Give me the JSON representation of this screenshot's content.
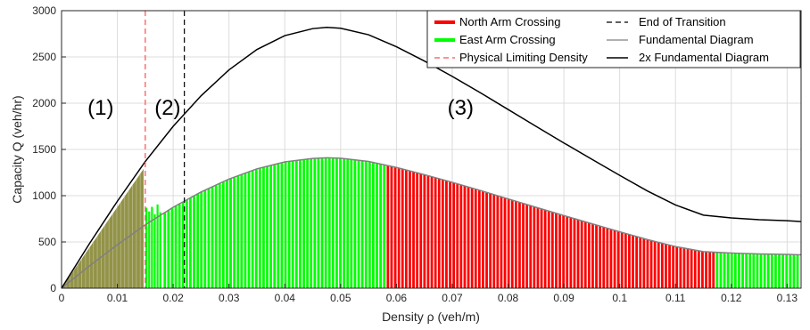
{
  "chart_data": {
    "type": "bar",
    "xlabel": "Density ρ (veh/m)",
    "ylabel": "Capacity Q (veh/hr)",
    "xlim": [
      0,
      0.1325
    ],
    "ylim": [
      0,
      3000
    ],
    "x_ticks": [
      "0",
      "0.01",
      "0.02",
      "0.03",
      "0.04",
      "0.05",
      "0.06",
      "0.07",
      "0.08",
      "0.09",
      "0.1",
      "0.11",
      "0.12",
      "0.13"
    ],
    "y_ticks": [
      "0",
      "500",
      "1000",
      "1500",
      "2000",
      "2500",
      "3000"
    ],
    "grid": true,
    "legend_position": "top-right",
    "legend": [
      "North Arm Crossing",
      "End of Transition",
      "East Arm Crossing",
      "Fundamental Diagram",
      "Physical Limiting Density",
      "2x Fundamental Diagram"
    ],
    "colors": {
      "north": "#ff0000",
      "east": "#00ff00",
      "overlap": "#8a8a3a",
      "fundamental": "#808080",
      "double": "#000000",
      "physical": "#ff4d4d",
      "transition": "#000000",
      "grid": "#dcdcdc"
    },
    "fundamental_diagram": {
      "x": [
        0,
        0.005,
        0.01,
        0.015,
        0.02,
        0.025,
        0.03,
        0.035,
        0.04,
        0.045,
        0.0475,
        0.05,
        0.055,
        0.06,
        0.065,
        0.07,
        0.075,
        0.08,
        0.085,
        0.09,
        0.095,
        0.1,
        0.105,
        0.11,
        0.115,
        0.12,
        0.125,
        0.13,
        0.1325
      ],
      "y": [
        0,
        241,
        470,
        685,
        875,
        1040,
        1180,
        1290,
        1365,
        1403,
        1410,
        1405,
        1370,
        1305,
        1228,
        1145,
        1057,
        966,
        875,
        785,
        697,
        610,
        525,
        450,
        395,
        380,
        370,
        365,
        360
      ]
    },
    "double_fundamental_diagram": {
      "x": [
        0,
        0.005,
        0.01,
        0.015,
        0.02,
        0.025,
        0.03,
        0.035,
        0.04,
        0.045,
        0.0475,
        0.05,
        0.055,
        0.06,
        0.065,
        0.07,
        0.075,
        0.08,
        0.085,
        0.09,
        0.095,
        0.1,
        0.105,
        0.11,
        0.115,
        0.12,
        0.125,
        0.13,
        0.1325
      ],
      "y": [
        0,
        482,
        940,
        1370,
        1750,
        2080,
        2360,
        2580,
        2730,
        2806,
        2820,
        2810,
        2740,
        2610,
        2456,
        2290,
        2114,
        1932,
        1750,
        1570,
        1394,
        1220,
        1050,
        900,
        790,
        760,
        740,
        730,
        720
      ]
    },
    "physical_limiting_density": 0.015,
    "end_of_transition": 0.022,
    "bar_width": 0.00035,
    "region_1": {
      "x": [
        0,
        0.015
      ],
      "values_x": [
        0,
        0.0147
      ],
      "values_y": [
        0,
        1290
      ]
    },
    "region_2_bars": [
      {
        "x": 0.0152,
        "value": 870
      },
      {
        "x": 0.0157,
        "value": 830
      },
      {
        "x": 0.0162,
        "value": 880
      },
      {
        "x": 0.0167,
        "value": 800
      },
      {
        "x": 0.0172,
        "value": 905
      },
      {
        "x": 0.0177,
        "value": 820
      }
    ],
    "region_3": {
      "x_start": 0.0185,
      "x_end": 0.1325,
      "north_segments": [
        [
          0.0582,
          0.117
        ]
      ]
    },
    "region_labels": [
      {
        "text": "(1)",
        "x": 0.007,
        "y": 1950
      },
      {
        "text": "(2)",
        "x": 0.019,
        "y": 1950
      },
      {
        "text": "(3)",
        "x": 0.0715,
        "y": 1950
      }
    ]
  }
}
